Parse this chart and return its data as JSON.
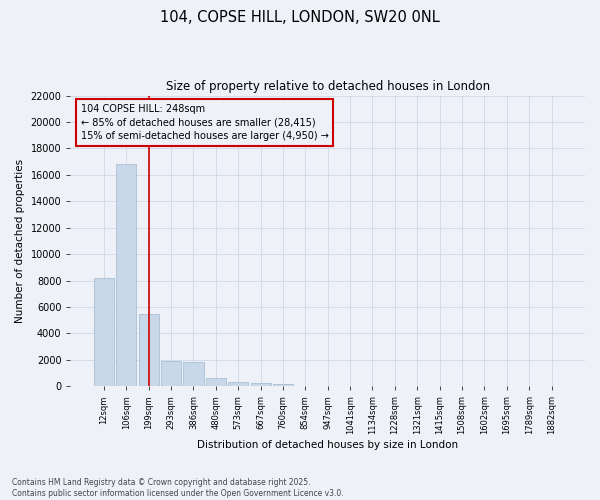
{
  "title_line1": "104, COPSE HILL, LONDON, SW20 0NL",
  "title_line2": "Size of property relative to detached houses in London",
  "xlabel": "Distribution of detached houses by size in London",
  "ylabel": "Number of detached properties",
  "categories": [
    "12sqm",
    "106sqm",
    "199sqm",
    "293sqm",
    "386sqm",
    "480sqm",
    "573sqm",
    "667sqm",
    "760sqm",
    "854sqm",
    "947sqm",
    "1041sqm",
    "1134sqm",
    "1228sqm",
    "1321sqm",
    "1415sqm",
    "1508sqm",
    "1602sqm",
    "1695sqm",
    "1789sqm",
    "1882sqm"
  ],
  "values": [
    8200,
    16800,
    5450,
    1900,
    1850,
    650,
    350,
    220,
    150,
    0,
    0,
    0,
    0,
    0,
    0,
    0,
    0,
    0,
    0,
    0,
    0
  ],
  "bar_color": "#c8d8e8",
  "bar_edgecolor": "#a0b8d0",
  "vline_color": "#cc0000",
  "annotation_text": "104 COPSE HILL: 248sqm\n← 85% of detached houses are smaller (28,415)\n15% of semi-detached houses are larger (4,950) →",
  "ylim": [
    0,
    22000
  ],
  "yticks": [
    0,
    2000,
    4000,
    6000,
    8000,
    10000,
    12000,
    14000,
    16000,
    18000,
    20000,
    22000
  ],
  "grid_color": "#d0d8e8",
  "bg_color": "#eef2f8",
  "footer_line1": "Contains HM Land Registry data © Crown copyright and database right 2025.",
  "footer_line2": "Contains public sector information licensed under the Open Government Licence v3.0."
}
